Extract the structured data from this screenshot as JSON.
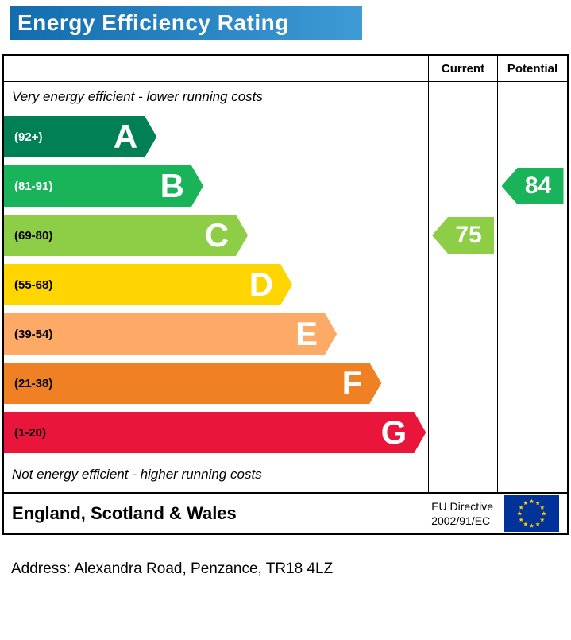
{
  "header": {
    "title": "Energy Efficiency Rating"
  },
  "columns": {
    "current": "Current",
    "potential": "Potential"
  },
  "chart_data": {
    "type": "bar",
    "title": "Energy Efficiency Rating",
    "top_note": "Very energy efficient - lower running costs",
    "bottom_note": "Not energy efficient - higher running costs",
    "column_headers": [
      "Current",
      "Potential"
    ],
    "bands": [
      {
        "letter": "A",
        "range": "(92+)",
        "min": 92,
        "max": 100,
        "color": "#008054",
        "range_text_color": "#ffffff",
        "width_pct": 36
      },
      {
        "letter": "B",
        "range": "(81-91)",
        "min": 81,
        "max": 91,
        "color": "#19b459",
        "range_text_color": "#ffffff",
        "width_pct": 47
      },
      {
        "letter": "C",
        "range": "(69-80)",
        "min": 69,
        "max": 80,
        "color": "#8dce46",
        "range_text_color": "#000000",
        "width_pct": 57.5
      },
      {
        "letter": "D",
        "range": "(55-68)",
        "min": 55,
        "max": 68,
        "color": "#ffd500",
        "range_text_color": "#000000",
        "width_pct": 68
      },
      {
        "letter": "E",
        "range": "(39-54)",
        "min": 39,
        "max": 54,
        "color": "#fcaa65",
        "range_text_color": "#000000",
        "width_pct": 78.5
      },
      {
        "letter": "F",
        "range": "(21-38)",
        "min": 21,
        "max": 38,
        "color": "#ef8023",
        "range_text_color": "#000000",
        "width_pct": 89
      },
      {
        "letter": "G",
        "range": "(1-20)",
        "min": 1,
        "max": 20,
        "color": "#e9153b",
        "range_text_color": "#000000",
        "width_pct": 99.5
      }
    ],
    "current": {
      "value": 75,
      "band": "C",
      "color": "#8dce46"
    },
    "potential": {
      "value": 84,
      "band": "B",
      "color": "#19b459"
    }
  },
  "footer": {
    "region": "England, Scotland & Wales",
    "directive_line1": "EU Directive",
    "directive_line2": "2002/91/EC"
  },
  "address": {
    "text": "Address: Alexandra Road, Penzance, TR18 4LZ"
  }
}
